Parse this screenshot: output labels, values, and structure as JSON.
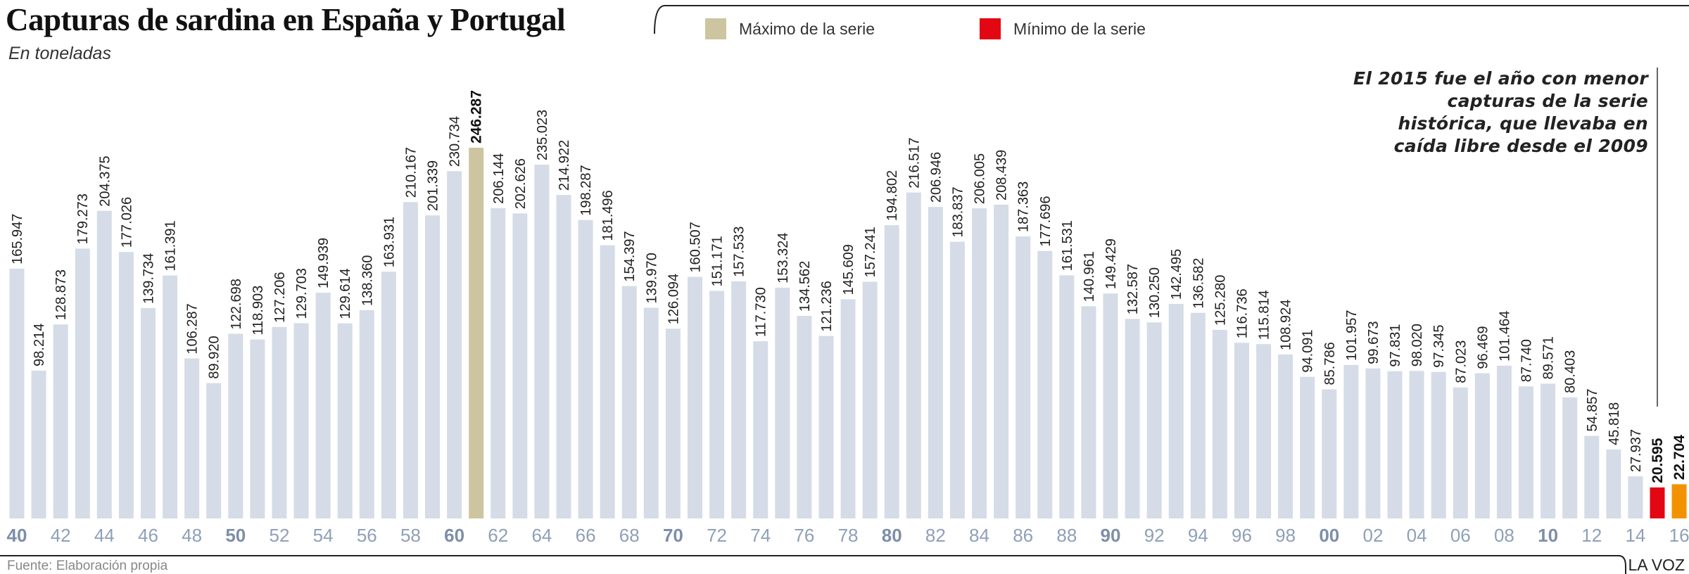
{
  "chart_data": {
    "type": "bar",
    "title": "Capturas de sardina en España y Portugal",
    "subtitle": "En toneladas",
    "xlabel": "",
    "ylabel": "",
    "ylim": [
      0,
      250000
    ],
    "grid": false,
    "years": [
      1940,
      1941,
      1942,
      1943,
      1944,
      1945,
      1946,
      1947,
      1948,
      1949,
      1950,
      1951,
      1952,
      1953,
      1954,
      1955,
      1956,
      1957,
      1958,
      1959,
      1960,
      1961,
      1962,
      1963,
      1964,
      1965,
      1966,
      1967,
      1968,
      1969,
      1970,
      1971,
      1972,
      1973,
      1974,
      1975,
      1976,
      1977,
      1978,
      1979,
      1980,
      1981,
      1982,
      1983,
      1984,
      1985,
      1986,
      1987,
      1988,
      1989,
      1990,
      1991,
      1992,
      1993,
      1994,
      1995,
      1996,
      1997,
      1998,
      1999,
      2000,
      2001,
      2002,
      2003,
      2004,
      2005,
      2006,
      2007,
      2008,
      2009,
      2010,
      2011,
      2012,
      2013,
      2014,
      2015,
      2016
    ],
    "values": [
      165947,
      98214,
      128873,
      179273,
      204375,
      177026,
      139734,
      161391,
      106287,
      89920,
      122698,
      118903,
      127206,
      129703,
      149939,
      129614,
      138360,
      163931,
      210167,
      201339,
      230734,
      246287,
      206144,
      202626,
      235023,
      214922,
      198287,
      181496,
      154397,
      139970,
      126094,
      160507,
      151171,
      157533,
      117730,
      153324,
      134562,
      121236,
      145609,
      157241,
      194802,
      216517,
      206946,
      183837,
      206005,
      208439,
      187363,
      177696,
      161531,
      140961,
      149429,
      132587,
      130250,
      142495,
      136582,
      125280,
      116736,
      115814,
      108924,
      94091,
      85786,
      101957,
      99673,
      97831,
      98020,
      97345,
      87023,
      96469,
      101464,
      87740,
      89571,
      80403,
      54857,
      45818,
      27937,
      20595,
      22704
    ],
    "tick_labels": [
      "40",
      "42",
      "44",
      "46",
      "48",
      "50",
      "52",
      "54",
      "56",
      "58",
      "60",
      "62",
      "64",
      "66",
      "68",
      "70",
      "72",
      "74",
      "76",
      "78",
      "80",
      "82",
      "84",
      "86",
      "88",
      "90",
      "92",
      "94",
      "96",
      "98",
      "00",
      "02",
      "04",
      "06",
      "08",
      "10",
      "12",
      "14",
      "16"
    ],
    "bold_ticks": [
      "40",
      "50",
      "60",
      "70",
      "80",
      "90",
      "00",
      "10"
    ],
    "highlights": {
      "max_year": 1961,
      "min_year": 2015,
      "last_year": 2016
    },
    "legend": [
      {
        "label": "Máximo de la serie",
        "color": "#cdc59f"
      },
      {
        "label": "Mínimo de la serie",
        "color": "#e30613"
      }
    ],
    "legend_placement": "top",
    "annotation": "El 2015 fue el año con menor capturas de la serie histórica, que llevaba en caída libre desde el 2009"
  },
  "colors": {
    "bar": "#d5dce7",
    "max": "#cdc59f",
    "min": "#e30613",
    "last": "#f39200",
    "tick": "#8fa0b8"
  },
  "footer": {
    "source": "Fuente: Elaboración propia",
    "brand": "LA VOZ"
  }
}
